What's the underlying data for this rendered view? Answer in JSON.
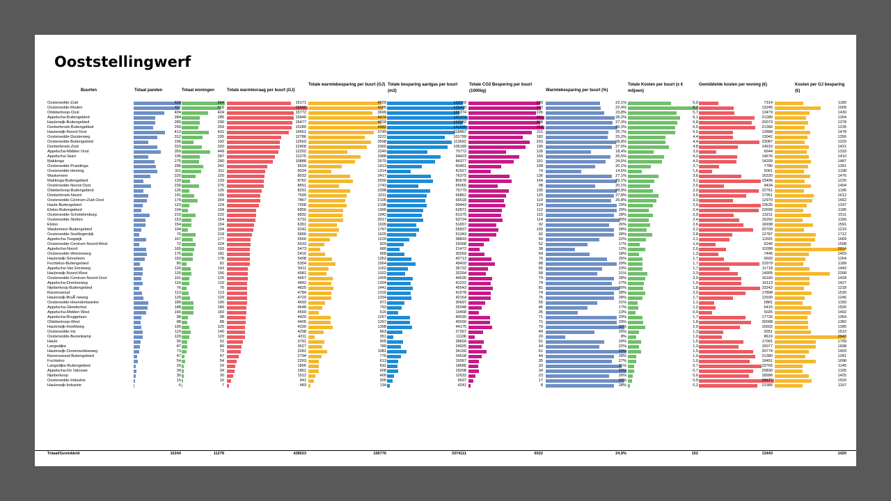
{
  "title": "Ooststellingwerf",
  "colors": {
    "panden": "#6d8fc4",
    "woningen": "#6fbf6a",
    "warmtevraag": "#ee5a61",
    "warmtebesparing": "#f5b72b",
    "aardgas": "#1c8cd8",
    "co2": "#c7198a",
    "wbpct": "#6d8fc4",
    "kosten": "#6fbf6a",
    "kostenwoning": "#ee5a61",
    "kostengj": "#f5b72b"
  },
  "headers": {
    "buurten": "Buurten",
    "panden": "Totaal panden",
    "woningen": "Totaal woningen",
    "warmtevraag": "Totale warmtevraag per buurt (GJ)",
    "warmtebesparing": "Totale warmtebesparing per buurt (GJ)",
    "aardgas": "Totale besparing aardgas per buurt (m3)",
    "co2": "Totale CO2 Bespering per buurt (1000kg)",
    "wbpct": "Warmtebesparing per buurt (%)",
    "kosten": "Totale Kosten per buurt (x € miljoen)",
    "kostenwoning": "Gemiddelde kosten per woning (€)",
    "kostengj": "Kosten per GJ besparing (€)"
  },
  "rows": [
    [
      "Oosterwolde-Zuid",
      "628",
      "684",
      "15171",
      "4209",
      "133050",
      "239",
      "22,1%",
      "5,0",
      "7314",
      "1180"
    ],
    [
      "Oosterwolde-Moden",
      "611",
      "618",
      "19090",
      "4285",
      "135420",
      "242",
      "22,4%",
      "8,2",
      "13245",
      "1909"
    ],
    [
      "Oldeberkoop-Oost",
      "404",
      "424",
      "15772",
      "3699",
      "126374",
      "226",
      "23,8%",
      "5,7",
      "13479",
      "1430"
    ],
    [
      "Appelscha-Buitengebied",
      "284",
      "285",
      "15846",
      "4474",
      "141374",
      "253",
      "28,2%",
      "6,1",
      "21280",
      "1304"
    ],
    [
      "Haulerwijk-Buitengebied",
      "289",
      "290",
      "15477",
      "4218",
      "133282",
      "238",
      "27,3%",
      "5,8",
      "20073",
      "1378"
    ],
    [
      "Donkerbroek-Buitengebied",
      "259",
      "259",
      "15280",
      "4482",
      "141635",
      "253",
      "29,3%",
      "5,5",
      "21366",
      "1235"
    ],
    [
      "Haulerwijk-Noord-Oost",
      "413",
      "431",
      "14561",
      "3749",
      "118467",
      "211",
      "25,7%",
      "5,5",
      "12868",
      "1478"
    ],
    [
      "Oosterwolde-Duisterweg",
      "312",
      "335",
      "12786",
      "3222",
      "101799",
      "182",
      "25,2%",
      "4,4",
      "13042",
      "1356"
    ],
    [
      "Oosterwolde-Buitengebied",
      "190",
      "192",
      "12503",
      "3598",
      "113691",
      "203",
      "28,8%",
      "4,4",
      "23087",
      "1229"
    ],
    [
      "Donkerbroek-Zuid",
      "310",
      "320",
      "12458",
      "3360",
      "106189",
      "190",
      "27,0%",
      "4,8",
      "14910",
      "1421"
    ],
    [
      "Appelscha-Midden Oost",
      "359",
      "449",
      "12202",
      "2240",
      "70772",
      "126",
      "18,4%",
      "3,0",
      "6644",
      "1333"
    ],
    [
      "Appelscha-Vaart",
      "195",
      "287",
      "11275",
      "2988",
      "94423",
      "169",
      "26,5%",
      "4,2",
      "14676",
      "1410"
    ],
    [
      "Makkinga",
      "275",
      "280",
      "10888",
      "2670",
      "84377",
      "151",
      "24,5%",
      "4,0",
      "14209",
      "1487"
    ],
    [
      "Oosterwolde-Prandinga",
      "296",
      "342",
      "9524",
      "1913",
      "60451",
      "108",
      "20,1%",
      "2,7",
      "7780",
      "1391"
    ],
    [
      "Oosterwolde-Heming",
      "311",
      "311",
      "9034",
      "1314",
      "41527",
      "74",
      "14,5%",
      "1,6",
      "5061",
      "1198"
    ],
    [
      "Waskemeer",
      "220",
      "220",
      "8932",
      "2417",
      "76375",
      "136",
      "27,1%",
      "3,6",
      "16220",
      "1476"
    ],
    [
      "Makkinga-Buitengebied",
      "133",
      "133",
      "8762",
      "2550",
      "80578",
      "144",
      "29,1%",
      "3,1",
      "23496",
      "1226"
    ],
    [
      "Oosterwolde-Noord-Oost",
      "230",
      "276",
      "8651",
      "1743",
      "55065",
      "98",
      "20,1%",
      "2,6",
      "9434",
      "1494"
    ],
    [
      "Oldeberkoop-Buitengebied",
      "126",
      "126",
      "8291",
      "2398",
      "75779",
      "135",
      "28,9%",
      "2,9",
      "22761",
      "1196"
    ],
    [
      "Donkerbroek-Noord",
      "191",
      "199",
      "7939",
      "2211",
      "69861",
      "125",
      "27,8%",
      "3,6",
      "17951",
      "1612"
    ],
    [
      "Oosterwolde-Centrum-Zuid-Oost",
      "174",
      "254",
      "7857",
      "2105",
      "66518",
      "119",
      "26,8%",
      "3,3",
      "12970",
      "1562"
    ],
    [
      "Haule-Buitengebied",
      "123",
      "124",
      "7558",
      "2198",
      "69443",
      "124",
      "29%",
      "2,9",
      "23635",
      "1337"
    ],
    [
      "Elsloo-Buitengebied",
      "104",
      "104",
      "6856",
      "1990",
      "62871",
      "112",
      "29%",
      "2,4",
      "22699",
      "1185"
    ],
    [
      "Oosterwolde-Schottelenburg",
      "210",
      "222",
      "6832",
      "1942",
      "61375",
      "110",
      "28%",
      "2,9",
      "13211",
      "1511"
    ],
    [
      "Oosterwolde-Slotten",
      "153",
      "154",
      "6731",
      "2017",
      "63724",
      "114",
      "30%",
      "2,4",
      "15262",
      "1166"
    ],
    [
      "Elsloo",
      "154",
      "154",
      "6351",
      "1635",
      "51657",
      "92",
      "26%",
      "2,6",
      "16938",
      "1591"
    ],
    [
      "Waskemeer-Buitengebied",
      "104",
      "104",
      "6241",
      "1767",
      "55837",
      "100",
      "28%",
      "2,2",
      "20709",
      "1219"
    ],
    [
      "Oosterwolde-Snellingerdijk",
      "76",
      "218",
      "5896",
      "1625",
      "51343",
      "92",
      "28%",
      "2,8",
      "12787",
      "1712"
    ],
    [
      "Appelscha-Toogwijk",
      "167",
      "177",
      "5550",
      "1229",
      "38833",
      "69",
      "22%",
      "2,1",
      "11591",
      "1669"
    ],
    [
      "Oosterwolde-Centrum-Noord-West",
      "72",
      "224",
      "5533",
      "929",
      "29368",
      "52",
      "17%",
      "1,4",
      "6246",
      "1508"
    ],
    [
      "Appelscha-Noord",
      "165",
      "193",
      "5473",
      "680",
      "21472",
      "38",
      "12%",
      "2,0",
      "10288",
      "2914"
    ],
    [
      "Oosterwolde-Weemeweg",
      "176",
      "181",
      "5416",
      "958",
      "30269",
      "54",
      "18%",
      "1,3",
      "7446",
      "1403"
    ],
    [
      "Haulerwijk-Sinnehiem",
      "150",
      "178",
      "5408",
      "1352",
      "42713",
      "76",
      "25%",
      "1,7",
      "9602",
      "1264"
    ],
    [
      "Fochteloo-Buitengebied",
      "80",
      "81",
      "5354",
      "1564",
      "49420",
      "88",
      "29%",
      "1,7",
      "22979",
      "1189"
    ],
    [
      "Appelscha-Van Emstweg",
      "120",
      "143",
      "5011",
      "1162",
      "36732",
      "66",
      "23%",
      "1,7",
      "11718",
      "1443"
    ],
    [
      "Haulerwijk-Noord-West",
      "120",
      "156",
      "4981",
      "1022",
      "32294",
      "58",
      "21%",
      "2,3",
      "14905",
      "2268"
    ],
    [
      "Oosterwolde-Centrum-Noord-Oost",
      "101",
      "125",
      "4957",
      "1409",
      "44535",
      "79",
      "28%",
      "2,0",
      "16160",
      "1428"
    ],
    [
      "Appelscha-Drentseweg",
      "116",
      "116",
      "4842",
      "1304",
      "41222",
      "74",
      "27%",
      "1,9",
      "16113",
      "1427"
    ],
    [
      "Nijeberkoop-Buitengebied",
      "76",
      "76",
      "4825",
      "1441",
      "45543",
      "81",
      "30%",
      "1,8",
      "23242",
      "1218"
    ],
    [
      "Ravenswoud",
      "113",
      "113",
      "4784",
      "1316",
      "41578",
      "74",
      "28%",
      "2,0",
      "17898",
      "1530"
    ],
    [
      "Haulerwijk-BruÃ´neweg",
      "129",
      "129",
      "4720",
      "1334",
      "42154",
      "75",
      "28%",
      "1,7",
      "12930",
      "1246"
    ],
    [
      "Oosterwolde-Hoenderkwartier",
      "189",
      "190",
      "4693",
      "971",
      "30697",
      "55",
      "21%",
      "1,1",
      "5881",
      "1150"
    ],
    [
      "Appelscha-Sleedenhal",
      "188",
      "189",
      "4648",
      "793",
      "25048",
      "45",
      "17%",
      "1,2",
      "6415",
      "1526"
    ],
    [
      "Appelscha-Midden West",
      "166",
      "183",
      "4569",
      "616",
      "19468",
      "35",
      "13%",
      "0,9",
      "5025",
      "1492"
    ],
    [
      "Appelscha-Bruggelaan",
      "98",
      "98",
      "4420",
      "1267",
      "40030",
      "71",
      "29%",
      "1,7",
      "17726",
      "1364"
    ],
    [
      "Oldeberkoop-West",
      "88",
      "88",
      "4405",
      "1267",
      "40030",
      "71",
      "29%",
      "1,8",
      "20008",
      "1382"
    ],
    [
      "Haulerwijk-Hoofdweg",
      "100",
      "125",
      "4330",
      "1398",
      "44175",
      "79",
      "32%",
      "2,0",
      "15602",
      "1395"
    ],
    [
      "Oosterwolde-Iris",
      "119",
      "140",
      "4298",
      "863",
      "27267",
      "49",
      "20%",
      "1,3",
      "9351",
      "1512"
    ],
    [
      "Oosterwolde-Bezenkamp",
      "120",
      "120",
      "4211",
      "351",
      "11106",
      "20",
      "8%",
      "1,0",
      "8619",
      "2943"
    ],
    [
      "Haule",
      "90",
      "91",
      "3791",
      "905",
      "28604",
      "51",
      "24%",
      "1,5",
      "17091",
      "1709"
    ],
    [
      "Langedijke",
      "87",
      "89",
      "3527",
      "789",
      "24925",
      "44",
      "22%",
      "1,3",
      "15077",
      "1698"
    ],
    [
      "Haulerwijk-Oosterwoldseweg",
      "73",
      "73",
      "3281",
      "1081",
      "34150",
      "61",
      "33%",
      "1,5",
      "20774",
      "1403"
    ],
    [
      "Ravenswoud-Buitengebied",
      "47",
      "47",
      "2794",
      "776",
      "24528",
      "44",
      "28%",
      "1,0",
      "21380",
      "1281"
    ],
    [
      "Fochteloo",
      "54",
      "54",
      "2263",
      "613",
      "19367",
      "35",
      "27%",
      "1,0",
      "19451",
      "1698"
    ],
    [
      "Langedijke-Buitengebied",
      "29",
      "29",
      "1895",
      "591",
      "18685",
      "33",
      "31%",
      "0,7",
      "23765",
      "1145"
    ],
    [
      "Appelscha-De Valouwe",
      "34",
      "34",
      "1861",
      "608",
      "19208",
      "34",
      "33%",
      "0,7",
      "20830",
      "1165"
    ],
    [
      "Nijeberkoop",
      "30",
      "30",
      "1512",
      "400",
      "12633",
      "23",
      "26%",
      "0,6",
      "18996",
      "1425"
    ],
    [
      "Oosterwolde-Industrie",
      "15",
      "16",
      "941",
      "305",
      "9637",
      "17",
      "32%",
      "0,5",
      "28677",
      "1520"
    ],
    [
      "Haulerwijk-Industrie",
      "6",
      "7",
      "483",
      "134",
      "4241",
      "8",
      "28%",
      "0,2",
      "22385",
      "1167"
    ]
  ],
  "totals": {
    "label": "Totaal/Gemiddeld",
    "panden": "10244",
    "woningen": "11278",
    "warmtevraag": "428523",
    "warmtebesparing": "106776",
    "aardgas": "3374111",
    "co2": "6022",
    "wbpct": "24,9%",
    "kosten": "152",
    "kostenwoning": "13443",
    "kostengj": "1420"
  }
}
